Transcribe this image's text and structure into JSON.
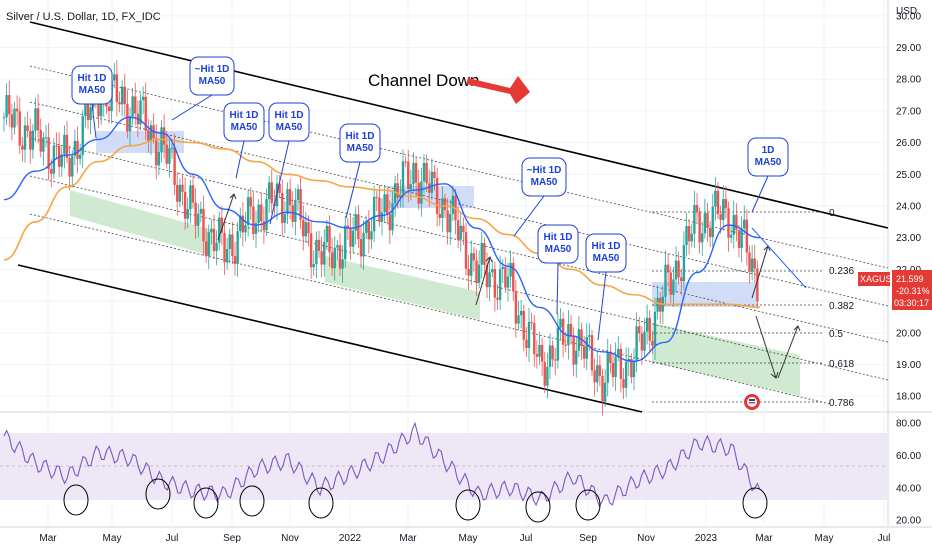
{
  "header": {
    "title": "Silver / U.S. Dollar, 1D, FX_IDC"
  },
  "price_axis": {
    "currency": "USD",
    "ticks": [
      "30.00",
      "29.00",
      "28.00",
      "27.00",
      "26.00",
      "25.00",
      "24.00",
      "23.00",
      "22.00",
      "21.00",
      "20.00",
      "19.00",
      "18.00"
    ],
    "badge": {
      "symbol": "XAGUSD",
      "price": "21.599",
      "change": "-20.31%",
      "countdown": "03:30:17"
    }
  },
  "rsi_axis": {
    "ticks": [
      "80.00",
      "60.00",
      "40.00",
      "20.00"
    ]
  },
  "time_axis": {
    "ticks": [
      "Mar",
      "May",
      "Jul",
      "Sep",
      "Nov",
      "2022",
      "Mar",
      "May",
      "Jul",
      "Sep",
      "Nov",
      "2023",
      "Mar",
      "May",
      "Jul"
    ]
  },
  "annotations": {
    "channel_label": "Channel Down",
    "callouts": [
      {
        "id": "hit-1",
        "lines": [
          "Hit 1D",
          "MA50"
        ]
      },
      {
        "id": "hit-2",
        "lines": [
          "~Hit 1D",
          "MA50"
        ]
      },
      {
        "id": "hit-3",
        "lines": [
          "Hit 1D",
          "MA50"
        ]
      },
      {
        "id": "hit-4",
        "lines": [
          "Hit 1D",
          "MA50"
        ]
      },
      {
        "id": "hit-5",
        "lines": [
          "Hit 1D",
          "MA50"
        ]
      },
      {
        "id": "hit-6",
        "lines": [
          "~Hit 1D",
          "MA50"
        ]
      },
      {
        "id": "hit-7",
        "lines": [
          "Hit 1D",
          "MA50"
        ]
      },
      {
        "id": "hit-8",
        "lines": [
          "Hit 1D",
          "MA50"
        ]
      },
      {
        "id": "ma50",
        "lines": [
          "1D",
          "MA50"
        ]
      }
    ],
    "fib_levels": [
      "0",
      "0.236",
      "0.382",
      "0.5",
      "0.618",
      "0.786"
    ]
  },
  "colors": {
    "candle_up": "#26a69a",
    "candle_down": "#ef5350",
    "ma50": "#2962ff",
    "ma200": "#f7a543",
    "rsi": "#7e57c2",
    "rsi_band": "#ede7f6",
    "accent_red": "#e53935",
    "callout": "#1e40d8",
    "green_zone": "#c8e6c9",
    "blue_zone": "#c5d5f5"
  },
  "chart_data": {
    "type": "line",
    "title": "Silver / U.S. Dollar, 1D, FX_IDC",
    "xlabel": "",
    "ylabel": "USD",
    "ylim": [
      17.5,
      30.5
    ],
    "rsi_ylim": [
      17,
      85
    ],
    "x": [
      "2021-02",
      "2021-03",
      "2021-04",
      "2021-05",
      "2021-06",
      "2021-07",
      "2021-08",
      "2021-09",
      "2021-10",
      "2021-11",
      "2021-12",
      "2022-01",
      "2022-02",
      "2022-03",
      "2022-04",
      "2022-05",
      "2022-06",
      "2022-07",
      "2022-08",
      "2022-09",
      "2022-10",
      "2022-11",
      "2022-12",
      "2023-01",
      "2023-02"
    ],
    "series": [
      {
        "name": "XAGUSD",
        "values": [
          26.8,
          26.2,
          25.3,
          27.6,
          27.2,
          25.9,
          23.7,
          22.6,
          23.8,
          24.3,
          22.4,
          22.9,
          23.8,
          25.1,
          24.0,
          22.0,
          21.6,
          19.0,
          20.0,
          18.6,
          19.2,
          21.3,
          23.5,
          23.8,
          21.6
        ]
      },
      {
        "values": [
          24.2,
          25.1,
          25.6,
          26.1,
          26.8,
          26.3,
          25.0,
          23.9,
          23.4,
          23.8,
          23.5,
          23.3,
          23.7,
          24.5,
          24.7,
          23.3,
          22.1,
          20.8,
          19.9,
          19.4,
          19.1,
          19.7,
          21.9,
          23.4,
          23.0
        ]
      },
      {
        "values": [
          22.3,
          23.5,
          24.6,
          25.4,
          25.9,
          26.1,
          26.0,
          25.8,
          25.4,
          25.0,
          24.8,
          24.6,
          24.5,
          24.3,
          24.0,
          23.6,
          23.1,
          22.5,
          22.0,
          21.5,
          21.2,
          20.9,
          20.9,
          20.9,
          20.8
        ]
      }
    ],
    "rsi": [
      72,
      55,
      47,
      62,
      58,
      44,
      38,
      36,
      52,
      57,
      40,
      49,
      60,
      75,
      55,
      36,
      40,
      33,
      47,
      31,
      44,
      52,
      68,
      64,
      33
    ],
    "fib_retracement": [
      {
        "level": "0",
        "price": 23.9
      },
      {
        "level": "0.236",
        "price": 21.7
      },
      {
        "level": "0.382",
        "price": 20.8
      },
      {
        "level": "0.5",
        "price": 19.9
      },
      {
        "level": "0.618",
        "price": 19.0
      },
      {
        "level": "0.786",
        "price": 17.7
      }
    ],
    "price_min_tick": 18,
    "price_max_tick": 30
  }
}
